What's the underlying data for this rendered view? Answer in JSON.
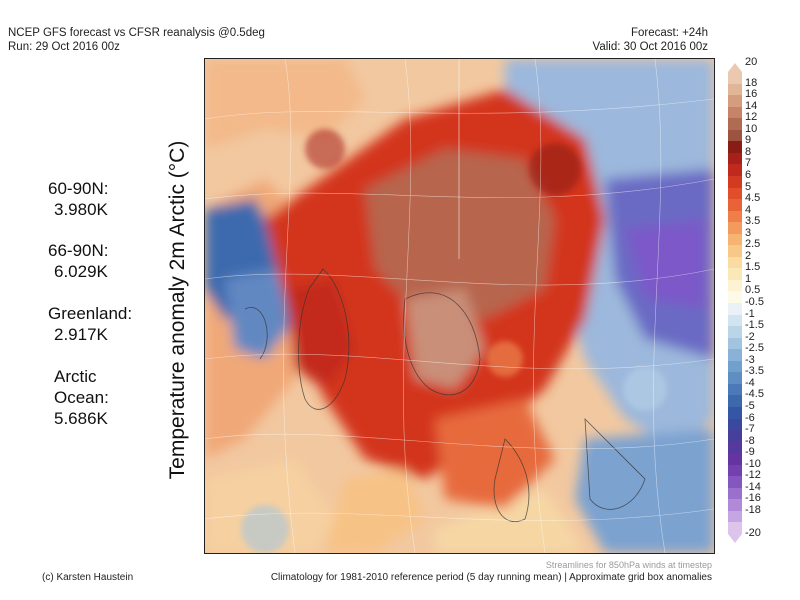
{
  "header": {
    "title": "NCEP GFS forecast vs CFSR reanalysis @0.5deg",
    "run": "Run: 29 Oct 2016 00z",
    "forecast": "Forecast: +24h",
    "valid": "Valid: 30 Oct 2016 00z"
  },
  "stats": [
    {
      "label": "60-90N:",
      "value": "3.980K"
    },
    {
      "label": "66-90N:",
      "value": "6.029K"
    },
    {
      "label": "Greenland:",
      "value": "2.917K"
    },
    {
      "label": "Arctic",
      "label2": "Ocean:",
      "value": "5.686K"
    }
  ],
  "axis_label": "Temperature anomaly 2m Arctic (°C)",
  "colorbar": {
    "labels": [
      "20",
      "18",
      "16",
      "14",
      "12",
      "10",
      "9",
      "8",
      "7",
      "6",
      "5",
      "4.5",
      "4",
      "3.5",
      "3",
      "2.5",
      "2",
      "1.5",
      "1",
      "0.5",
      "-0.5",
      "-1",
      "-1.5",
      "-2",
      "-2.5",
      "-3",
      "-3.5",
      "-4",
      "-4.5",
      "-5",
      "-6",
      "-7",
      "-8",
      "-9",
      "-10",
      "-12",
      "-14",
      "-16",
      "-18",
      "-20"
    ],
    "colors": [
      "#ebc9b0",
      "#e0b598",
      "#d49d80",
      "#c58468",
      "#b06c52",
      "#9c5340",
      "#8a1c16",
      "#a8201a",
      "#c02a1c",
      "#d23a22",
      "#e04e2c",
      "#e86438",
      "#ef7e48",
      "#f39a5c",
      "#f6b472",
      "#f8c888",
      "#fadba0",
      "#fbe8b8",
      "#fdf3d2",
      "#fefae8",
      "#eaf2f8",
      "#d2e4f0",
      "#bad4e8",
      "#a2c4e0",
      "#8ab2d8",
      "#72a0cc",
      "#5e8ec2",
      "#4c7ab8",
      "#3e68ae",
      "#3456a4",
      "#3a48a0",
      "#46409c",
      "#543a9e",
      "#6434a2",
      "#7440b0",
      "#8456c0",
      "#9a70cc",
      "#b08ad8",
      "#c6a6e2",
      "#dcc4ec"
    ]
  },
  "footer": {
    "credit": "(c) Karsten Haustein",
    "climatology": "Climatology for 1981-2010 reference period (5 day running mean) | Approximate grid box anomalies",
    "streamlines": "Streamlines for 850hPa winds at timestep"
  }
}
